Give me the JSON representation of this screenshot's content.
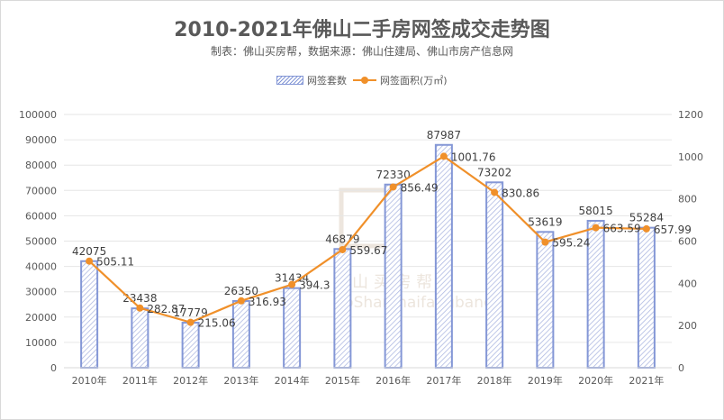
{
  "chart_data": {
    "type": "bar+line",
    "title": "2010-2021年佛山二手房网签成交走势图",
    "subtitle": "制表：佛山买房帮，数据来源：佛山住建局、佛山市房产信息网",
    "categories": [
      "2010年",
      "2011年",
      "2012年",
      "2013年",
      "2014年",
      "2015年",
      "2016年",
      "2017年",
      "2018年",
      "2019年",
      "2020年",
      "2021年"
    ],
    "series": [
      {
        "name": "网签套数",
        "type": "bar",
        "axis": "left",
        "color": "#8497d6",
        "values": [
          42075,
          23438,
          17779,
          26350,
          31434,
          46879,
          72330,
          87987,
          73202,
          53619,
          58015,
          55284
        ]
      },
      {
        "name": "网签面积(万㎡)",
        "type": "line",
        "axis": "right",
        "color": "#f0902a",
        "values": [
          505.11,
          282.87,
          215.06,
          316.93,
          394.3,
          559.67,
          856.49,
          1001.76,
          830.86,
          595.24,
          663.59,
          657.99
        ]
      }
    ],
    "left_axis": {
      "range": [
        0,
        100000
      ],
      "ticks": [
        0,
        10000,
        20000,
        30000,
        40000,
        50000,
        60000,
        70000,
        80000,
        90000,
        100000
      ]
    },
    "right_axis": {
      "range": [
        0,
        1200
      ],
      "ticks": [
        0,
        200,
        400,
        600,
        800,
        1000,
        1200
      ]
    },
    "grid": true,
    "legend": "top"
  },
  "watermark": "佛山买房帮 FoShanmaifangbang"
}
